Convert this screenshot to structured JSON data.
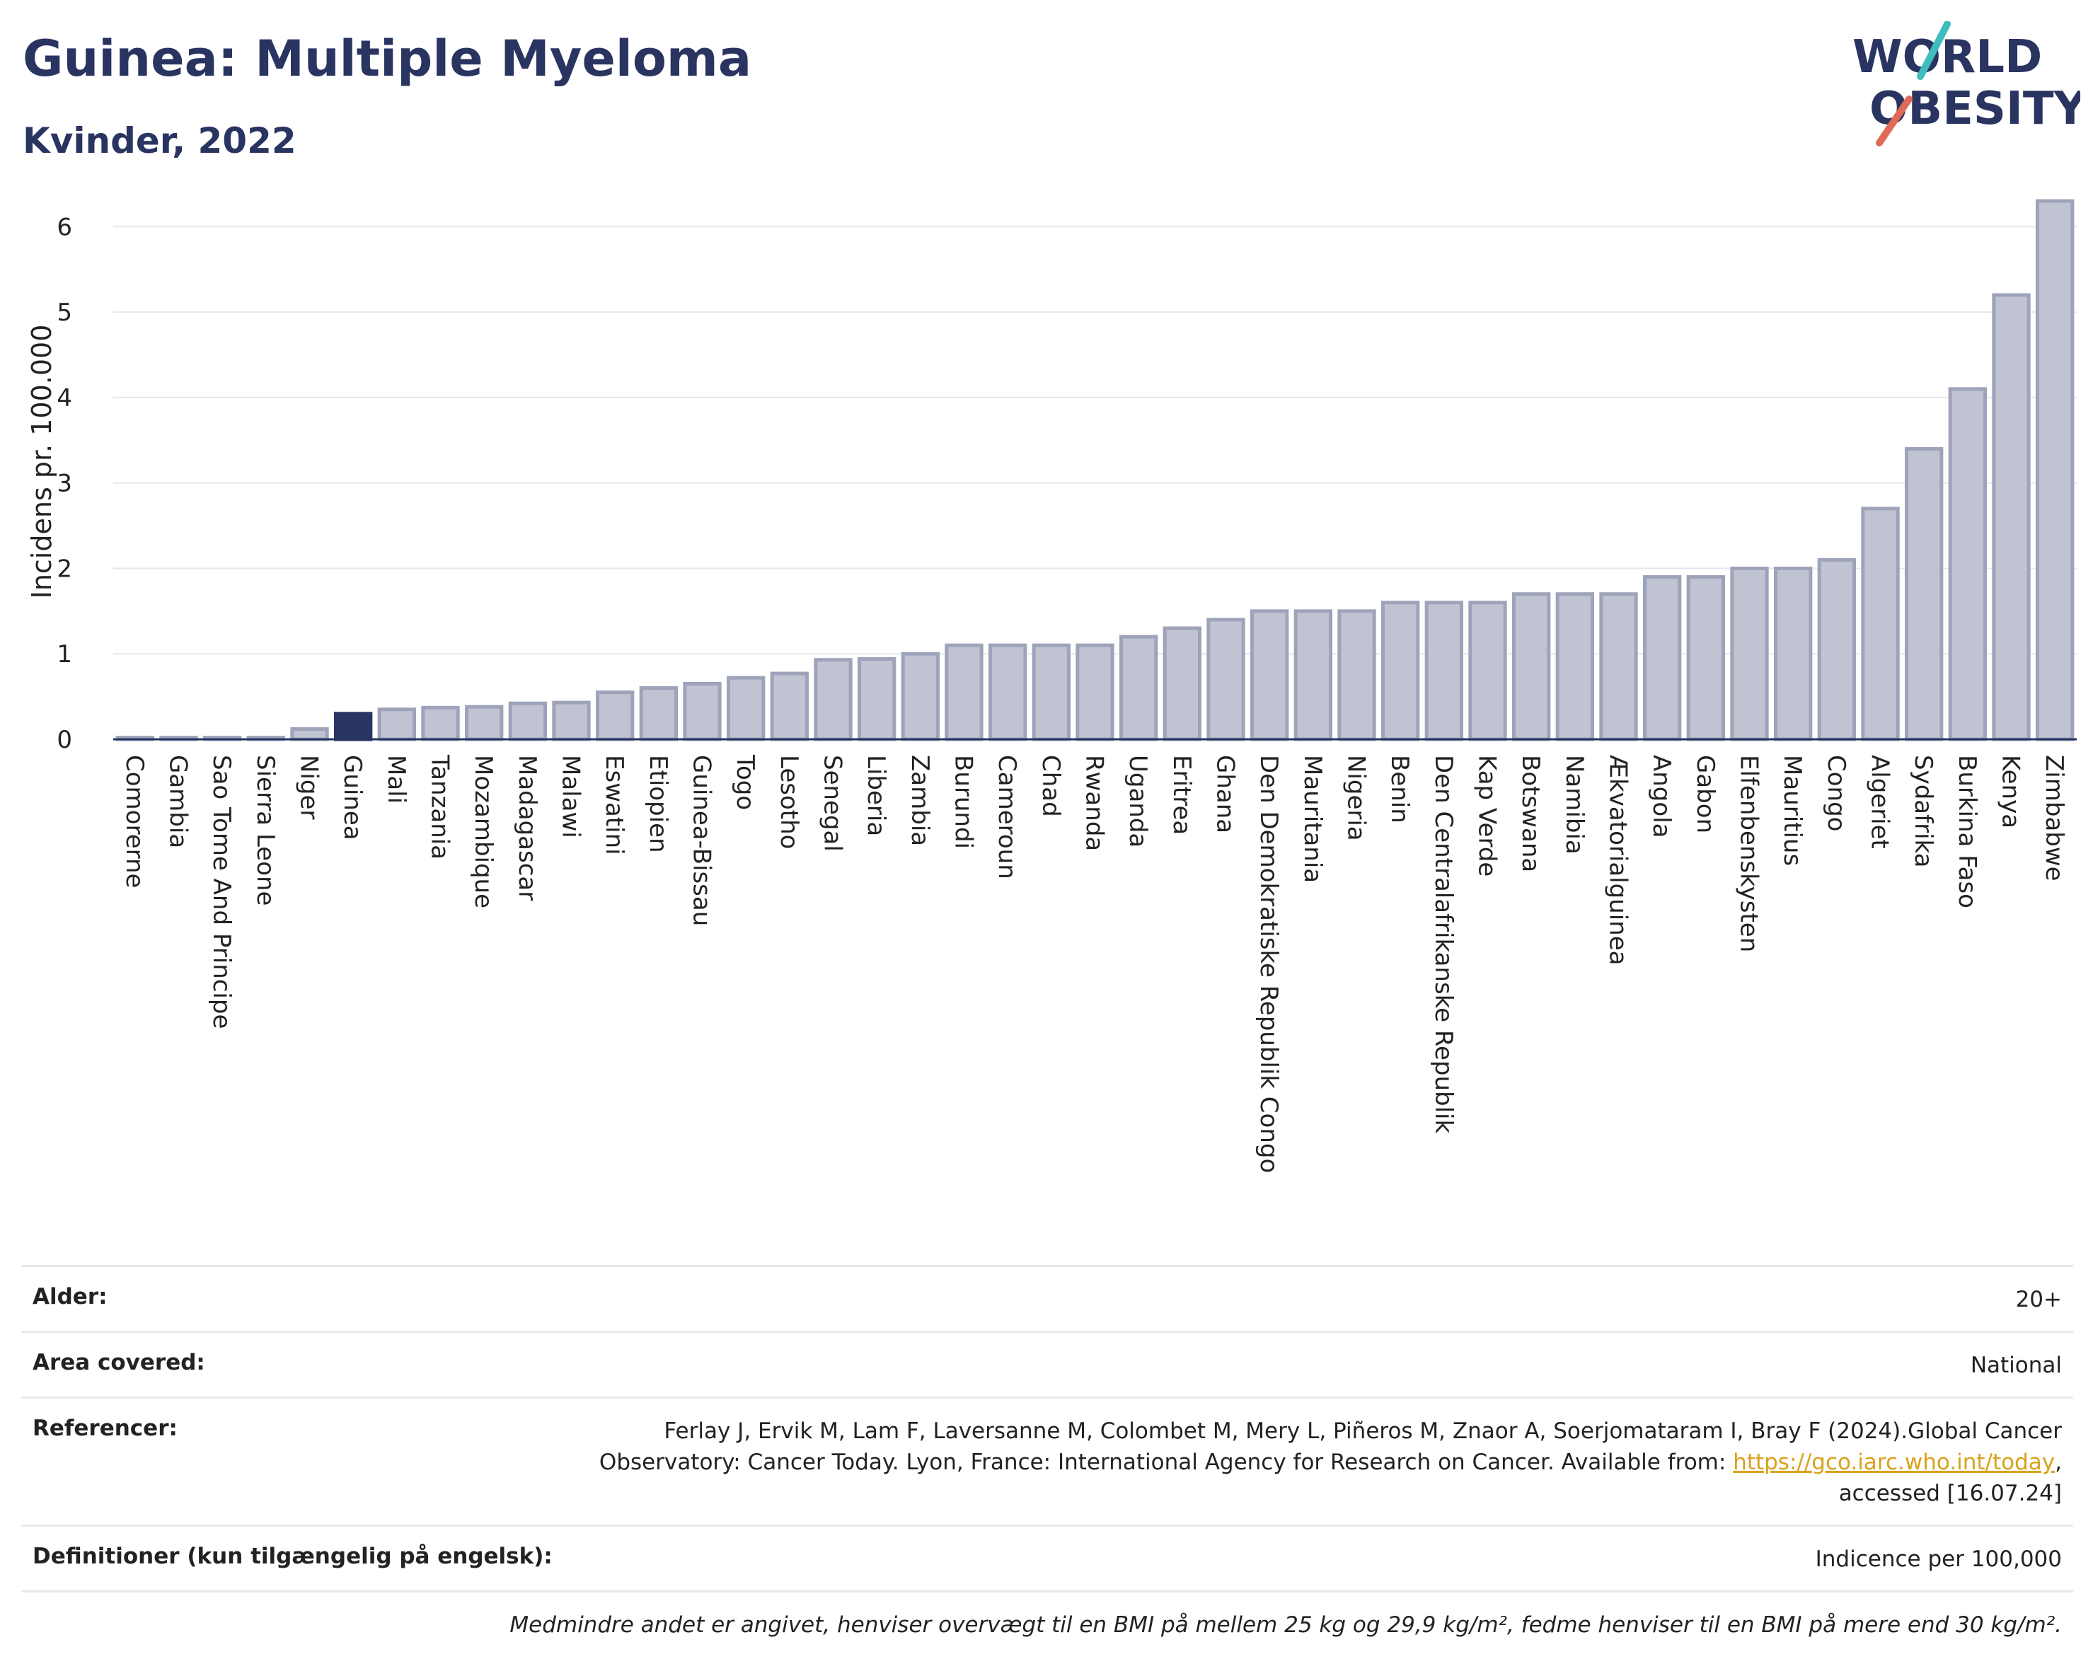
{
  "header": {
    "title": "Guinea: Multiple Myeloma",
    "subtitle": "Kvinder, 2022"
  },
  "logo": {
    "line1": "WORLD",
    "line2": "OBESITY",
    "accent_colors": [
      "#3fbcbd",
      "#e06a58"
    ],
    "text_color": "#2a3461"
  },
  "chart_data": {
    "type": "bar",
    "ylabel": "Incidens pr. 100.000",
    "ylim": [
      0,
      6.5
    ],
    "yticks": [
      0,
      1,
      2,
      3,
      4,
      5,
      6
    ],
    "grid": true,
    "highlight": "Guinea",
    "highlight_color": "#2a3461",
    "bar_color": "#bfc3d2",
    "bar_edge_color": "#9ea3ba",
    "categories": [
      "Comorerne",
      "Gambia",
      "Sao Tome And Principe",
      "Sierra Leone",
      "Niger",
      "Guinea",
      "Mali",
      "Tanzania",
      "Mozambique",
      "Madagascar",
      "Malawi",
      "Eswatini",
      "Etiopien",
      "Guinea-Bissau",
      "Togo",
      "Lesotho",
      "Senegal",
      "Liberia",
      "Zambia",
      "Burundi",
      "Cameroun",
      "Chad",
      "Rwanda",
      "Uganda",
      "Eritrea",
      "Ghana",
      "Den Demokratiske Republik Congo",
      "Mauritania",
      "Nigeria",
      "Benin",
      "Den Centralafrikanske Republik",
      "Kap Verde",
      "Botswana",
      "Namibia",
      "Ækvatorialguinea",
      "Angola",
      "Gabon",
      "Elfenbenskysten",
      "Mauritius",
      "Congo",
      "Algeriet",
      "Sydafrika",
      "Burkina Faso",
      "Kenya",
      "Zimbabwe"
    ],
    "values": [
      0.02,
      0.02,
      0.02,
      0.02,
      0.12,
      0.3,
      0.35,
      0.37,
      0.38,
      0.42,
      0.43,
      0.55,
      0.6,
      0.65,
      0.72,
      0.77,
      0.93,
      0.94,
      1.0,
      1.1,
      1.1,
      1.1,
      1.1,
      1.2,
      1.3,
      1.4,
      1.5,
      1.5,
      1.5,
      1.6,
      1.6,
      1.6,
      1.7,
      1.7,
      1.7,
      1.9,
      1.9,
      2.0,
      2.0,
      2.1,
      2.7,
      3.4,
      4.1,
      5.2,
      6.3
    ]
  },
  "info": {
    "rows": [
      {
        "key": "Alder:",
        "value": "20+"
      },
      {
        "key": "Area covered:",
        "value": "National"
      },
      {
        "key": "Referencer:",
        "value_line1": "Ferlay J, Ervik M, Lam F, Laversanne M, Colombet M, Mery L, Piñeros M, Znaor A, Soerjomataram I, Bray F (2024).Global Cancer",
        "value_line2a": "Observatory: Cancer Today. Lyon, France: International Agency for Research on Cancer. Available from: ",
        "link": "https://gco.iarc.who.int/today",
        "value_line2b": ",",
        "value_line3": "accessed [16.07.24]"
      },
      {
        "key": "Definitioner (kun tilgængelig på engelsk):",
        "value": "Indicence per 100,000"
      }
    ],
    "footnote": "Medmindre andet er angivet, henviser overvægt til en BMI på mellem 25 kg og 29,9 kg/m², fedme henviser til en BMI på mere end 30 kg/m²."
  }
}
